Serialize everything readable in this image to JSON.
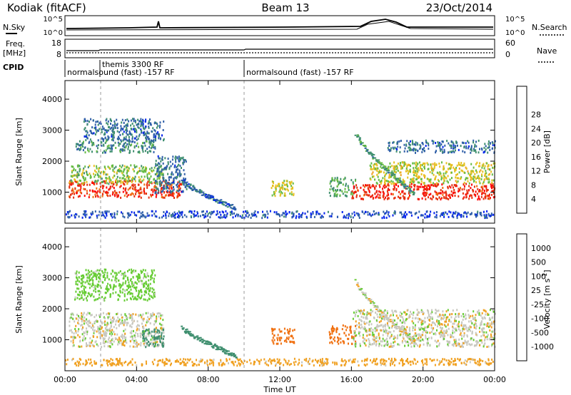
{
  "header": {
    "title_left": "Kodiak (fitACF)",
    "title_center": "Beam 13",
    "title_right": "23/Oct/2014"
  },
  "status_panels": {
    "nsky_label": "N.Sky",
    "nsky_ticks": [
      "10^5",
      "10^0"
    ],
    "nsearch_label": "N.Search",
    "nsearch_ticks": [
      "10^5",
      "10^0"
    ],
    "freq_label": "Freq.",
    "freq_unit": "[MHz]",
    "freq_ticks": [
      "18",
      "8"
    ],
    "nave_label": "Nave",
    "nave_ticks": [
      "60",
      "0"
    ],
    "cpid_label": "CPID",
    "cpid_entries": [
      {
        "label": "normalsound (fast) -157 RF",
        "row": "lower"
      },
      {
        "label": "themis 3300 RF",
        "row": "upper"
      },
      {
        "label": "normalsound (fast) -157 RF",
        "row": "lower"
      }
    ]
  },
  "x_axis": {
    "label": "Time UT",
    "ticks": [
      "00:00",
      "04:00",
      "08:00",
      "12:00",
      "16:00",
      "20:00",
      "00:00"
    ]
  },
  "colors": {
    "power": [
      "#0022ee",
      "#2f5fa8",
      "#3f8f6f",
      "#66bb44",
      "#e6c020",
      "#f0a020",
      "#f07010",
      "#e63010",
      "#ff0000"
    ],
    "velocity": [
      "#e60000",
      "#f03010",
      "#f07010",
      "#f0a020",
      "#c8c8c0",
      "#66cc33",
      "#3f8f6f",
      "#2f5fa8",
      "#0022ee"
    ],
    "ground_scatter": "#c8c8c0"
  },
  "chart_data": [
    {
      "type": "heatmap",
      "name": "power-panel",
      "ylabel": "Slant Range [km]",
      "xlim": [
        0,
        24
      ],
      "ylim": [
        0,
        4600
      ],
      "y_ticks": [
        "1000",
        "2000",
        "3000",
        "4000"
      ],
      "colorbar": {
        "label": "Power [dB]",
        "range": [
          0,
          30
        ],
        "tick_labels": [
          "4",
          "8",
          "12",
          "16",
          "20",
          "24",
          "28"
        ]
      },
      "regions": [
        {
          "t0": 0.2,
          "t1": 6.5,
          "r0": 850,
          "r1": 1400,
          "value": 25
        },
        {
          "t0": 0.2,
          "t1": 5.5,
          "r0": 1300,
          "r1": 1900,
          "value": 12
        },
        {
          "t0": 0.5,
          "t1": 5.0,
          "r0": 2300,
          "r1": 2700,
          "value": 8
        },
        {
          "t0": 1.0,
          "t1": 5.5,
          "r0": 2700,
          "r1": 3400,
          "value": 6
        },
        {
          "t0": 5.0,
          "t1": 6.8,
          "r0": 1000,
          "r1": 2200,
          "value": 6
        },
        {
          "t0": 11.5,
          "t1": 12.8,
          "r0": 900,
          "r1": 1400,
          "value": 14
        },
        {
          "t0": 14.7,
          "t1": 16.2,
          "r0": 900,
          "r1": 1500,
          "value": 10
        },
        {
          "t0": 16.0,
          "t1": 24.0,
          "r0": 800,
          "r1": 1300,
          "value": 26
        },
        {
          "t0": 17.0,
          "t1": 24.0,
          "r0": 1300,
          "r1": 2000,
          "value": 14
        },
        {
          "t0": 18.0,
          "t1": 24.0,
          "r0": 2300,
          "r1": 2700,
          "value": 6
        },
        {
          "t0": 0.0,
          "t1": 24.0,
          "r0": 200,
          "r1": 420,
          "value": 4
        }
      ],
      "tracks": [
        {
          "t0": 16.2,
          "r0": 2900,
          "t1": 19.5,
          "r1": 950,
          "value": 9
        },
        {
          "t0": 6.5,
          "r0": 1400,
          "t1": 9.5,
          "r1": 500,
          "value": 5
        }
      ]
    },
    {
      "type": "heatmap",
      "name": "velocity-panel",
      "ylabel": "Slant Range [km]",
      "xlim": [
        0,
        24
      ],
      "ylim": [
        0,
        4600
      ],
      "y_ticks": [
        "1000",
        "2000",
        "3000",
        "4000"
      ],
      "colorbar": {
        "label": "Velocity [m s^-1]",
        "tick_labels": [
          "1000",
          "500",
          "100",
          "25",
          "-25",
          "-100",
          "-500",
          "-1000"
        ]
      },
      "regions": [
        {
          "t0": 0.2,
          "t1": 5.5,
          "r0": 800,
          "r1": 1900,
          "value": 0
        },
        {
          "t0": 4.3,
          "t1": 5.5,
          "r0": 800,
          "r1": 1400,
          "value": 150
        },
        {
          "t0": 0.5,
          "t1": 5.0,
          "r0": 2300,
          "r1": 3300,
          "value": 60
        },
        {
          "t0": 11.5,
          "t1": 12.8,
          "r0": 900,
          "r1": 1400,
          "value": -200
        },
        {
          "t0": 14.7,
          "t1": 16.2,
          "r0": 900,
          "r1": 1500,
          "value": -150
        },
        {
          "t0": 16.0,
          "t1": 24.0,
          "r0": 800,
          "r1": 2000,
          "value": 0
        },
        {
          "t0": 0.0,
          "t1": 24.0,
          "r0": 200,
          "r1": 420,
          "value": -60
        }
      ],
      "tracks": [
        {
          "t0": 16.2,
          "r0": 2900,
          "t1": 19.5,
          "r1": 950,
          "value": 0
        },
        {
          "t0": 6.5,
          "r0": 1400,
          "t1": 9.5,
          "r1": 500,
          "value": 150
        }
      ]
    }
  ]
}
